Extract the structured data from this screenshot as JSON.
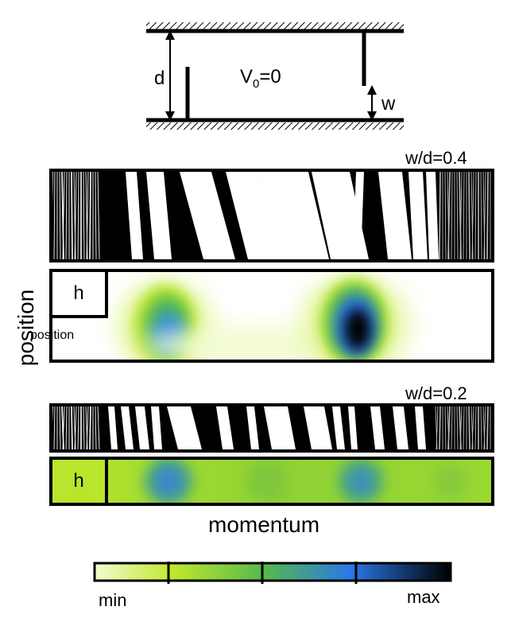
{
  "diagram": {
    "d_label": "d",
    "v0_main": "V",
    "v0_sub": "0",
    "v0_rest": "=0",
    "w_label": "w"
  },
  "panels": [
    {
      "ratio_label": "w/d=0.4",
      "husimi_label": "h"
    },
    {
      "ratio_label": "w/d=0.2",
      "husimi_label": "h"
    }
  ],
  "axes": {
    "y_label": "position",
    "x_label": "momentum"
  },
  "colorbar": {
    "min_label": "min",
    "max_label": "max",
    "colors": [
      "#f2fbd2",
      "#bfe82c",
      "#52b84f",
      "#2a78e8",
      "#000000"
    ]
  }
}
